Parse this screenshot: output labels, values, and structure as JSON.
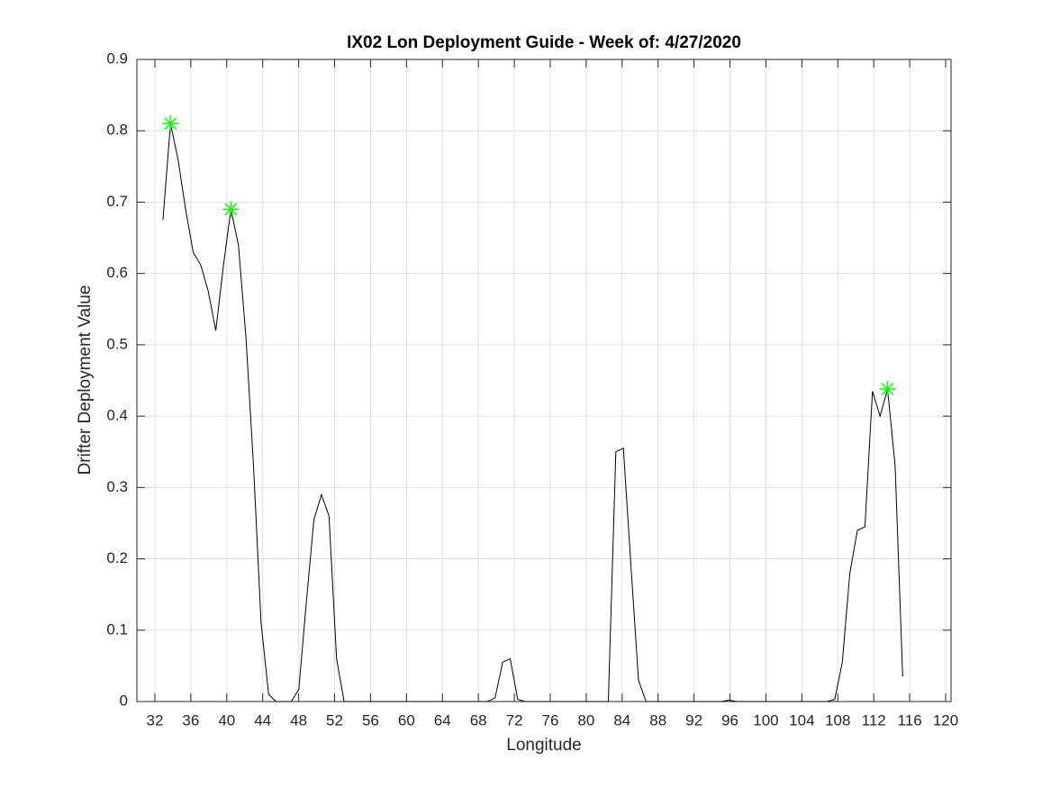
{
  "chart_data": {
    "type": "line",
    "title": "IX02 Lon Deployment Guide - Week of: 4/27/2020",
    "xlabel": "Longitude",
    "ylabel": "Drifter Deployment Value",
    "xlim": [
      30,
      120.6
    ],
    "ylim": [
      0,
      0.9
    ],
    "xticks": [
      32,
      36,
      40,
      44,
      48,
      52,
      56,
      60,
      64,
      68,
      72,
      76,
      80,
      84,
      88,
      92,
      96,
      100,
      104,
      108,
      112,
      116,
      120
    ],
    "yticks": [
      0,
      0.1,
      0.2,
      0.3,
      0.4,
      0.5,
      0.6,
      0.7,
      0.8,
      0.9
    ],
    "grid": true,
    "series": [
      {
        "color": "#000000",
        "marker": "none",
        "x": [
          32.9,
          33.74,
          34.58,
          35.42,
          36.26,
          37.1,
          37.94,
          38.78,
          39.62,
          40.46,
          41.3,
          42.14,
          42.98,
          43.82,
          44.66,
          45.5,
          46.34,
          47.18,
          48.02,
          48.86,
          49.7,
          50.54,
          51.38,
          52.22,
          53.06,
          53.9,
          54.74,
          55.58,
          56.42,
          57.26,
          58.1,
          58.94,
          59.78,
          60.62,
          61.46,
          62.3,
          63.14,
          63.98,
          64.82,
          65.66,
          66.5,
          67.34,
          68.18,
          69.02,
          69.86,
          70.7,
          71.54,
          72.38,
          73.22,
          74.06,
          74.9,
          75.74,
          76.58,
          77.42,
          78.26,
          79.1,
          79.94,
          80.78,
          81.62,
          82.46,
          83.3,
          84.14,
          84.98,
          85.82,
          86.66,
          87.5,
          88.34,
          89.18,
          90.02,
          90.86,
          91.7,
          92.54,
          93.38,
          94.22,
          95.06,
          95.9,
          96.74,
          97.58,
          98.42,
          99.26,
          100.1,
          100.94,
          101.78,
          102.62,
          103.46,
          104.3,
          105.14,
          105.98,
          106.82,
          107.66,
          108.5,
          109.34,
          110.18,
          111.02,
          111.86,
          112.7,
          113.54,
          114.38,
          115.22
        ],
        "values": [
          0.675,
          0.81,
          0.76,
          0.69,
          0.63,
          0.612,
          0.575,
          0.52,
          0.61,
          0.69,
          0.64,
          0.51,
          0.33,
          0.11,
          0.01,
          0,
          0,
          0,
          0.017,
          0.14,
          0.255,
          0.29,
          0.26,
          0.06,
          0,
          0,
          0,
          0,
          0,
          0,
          0,
          0,
          0,
          0,
          0,
          0,
          0,
          0,
          0,
          0,
          0,
          0,
          0,
          0,
          0.005,
          0.055,
          0.06,
          0.003,
          0,
          0,
          0,
          0,
          0,
          0,
          0,
          0,
          0,
          0,
          0,
          0,
          0.35,
          0.355,
          0.19,
          0.03,
          0,
          0,
          0,
          0,
          0,
          0,
          0,
          0,
          0,
          0,
          0,
          0.002,
          0,
          0,
          0,
          0,
          0,
          0,
          0,
          0,
          0,
          0,
          0,
          0,
          0,
          0.003,
          0.055,
          0.18,
          0.24,
          0.245,
          0.435,
          0.4,
          0.438,
          0.33,
          0.035
        ]
      },
      {
        "color": "#00ff00",
        "marker": "star",
        "x": [
          33.74,
          40.46,
          113.54
        ],
        "values": [
          0.81,
          0.69,
          0.438
        ]
      }
    ]
  }
}
